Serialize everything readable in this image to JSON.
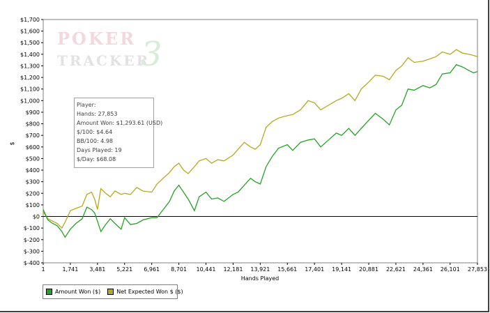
{
  "chart_data": {
    "type": "line",
    "xlabel": "Hands Played",
    "ylabel": "$",
    "xlim": [
      1,
      27853
    ],
    "ylim": [
      -400,
      1700
    ],
    "x_ticks": [
      1,
      1741,
      3481,
      5221,
      6961,
      8701,
      10441,
      12181,
      13921,
      15661,
      17401,
      19141,
      20881,
      22621,
      24361,
      26101,
      27853
    ],
    "y_ticks": [
      -400,
      -300,
      -200,
      -100,
      0,
      100,
      200,
      300,
      400,
      500,
      600,
      700,
      800,
      900,
      1000,
      1100,
      1200,
      1300,
      1400,
      1500,
      1600,
      1700
    ],
    "y_tick_labels": [
      "$-400",
      "$-300",
      "$-200",
      "$-100",
      "$0",
      "$100",
      "$200",
      "$300",
      "$400",
      "$500",
      "$600",
      "$700",
      "$800",
      "$900",
      "$1,000",
      "$1,100",
      "$1,200",
      "$1,300",
      "$1,400",
      "$1,500",
      "$1,600",
      "$1,700"
    ],
    "legend_position": "bottom-left",
    "series": [
      {
        "name": "Amount Won ($)",
        "color": "#22a322",
        "x": [
          1,
          300,
          600,
          900,
          1200,
          1400,
          1741,
          2100,
          2500,
          2800,
          3100,
          3300,
          3481,
          3700,
          4000,
          4300,
          4600,
          5000,
          5221,
          5600,
          6000,
          6400,
          6961,
          7300,
          7700,
          8100,
          8400,
          8701,
          9000,
          9300,
          9700,
          10000,
          10441,
          10800,
          11200,
          11600,
          12181,
          12500,
          12900,
          13300,
          13600,
          13921,
          14300,
          14700,
          15100,
          15661,
          16000,
          16500,
          17000,
          17401,
          17800,
          18300,
          18800,
          19141,
          19600,
          20000,
          20400,
          20881,
          21300,
          21800,
          22200,
          22621,
          23000,
          23400,
          23800,
          24361,
          24800,
          25200,
          25600,
          26101,
          26500,
          26900,
          27300,
          27600,
          27853
        ],
        "y": [
          60,
          -30,
          -60,
          -80,
          -130,
          -180,
          -110,
          -60,
          -20,
          80,
          60,
          30,
          -40,
          -130,
          -70,
          -20,
          -60,
          -110,
          -10,
          -70,
          -60,
          -30,
          -10,
          -10,
          60,
          130,
          220,
          270,
          210,
          150,
          50,
          170,
          210,
          150,
          160,
          130,
          190,
          210,
          270,
          330,
          300,
          280,
          430,
          520,
          590,
          620,
          570,
          640,
          660,
          670,
          600,
          660,
          720,
          700,
          760,
          700,
          760,
          830,
          890,
          840,
          790,
          920,
          960,
          1100,
          1090,
          1130,
          1110,
          1140,
          1230,
          1240,
          1310,
          1290,
          1260,
          1240,
          1250
        ]
      },
      {
        "name": "Net Expected Won $ ($)",
        "color": "#b5aa1e",
        "x": [
          1,
          300,
          600,
          900,
          1200,
          1400,
          1741,
          2100,
          2500,
          2800,
          3100,
          3300,
          3481,
          3700,
          4000,
          4300,
          4600,
          5000,
          5221,
          5600,
          6000,
          6400,
          6961,
          7300,
          7700,
          8100,
          8400,
          8701,
          9000,
          9300,
          9700,
          10000,
          10441,
          10800,
          11200,
          11600,
          12181,
          12500,
          12900,
          13300,
          13600,
          13921,
          14300,
          14700,
          15100,
          15661,
          16000,
          16500,
          17000,
          17401,
          17800,
          18300,
          18800,
          19141,
          19600,
          20000,
          20400,
          20881,
          21300,
          21800,
          22200,
          22621,
          23000,
          23400,
          23800,
          24361,
          24800,
          25200,
          25600,
          26101,
          26500,
          26900,
          27300,
          27600,
          27853
        ],
        "y": [
          40,
          -20,
          -40,
          -60,
          -100,
          -50,
          50,
          70,
          90,
          190,
          210,
          150,
          60,
          240,
          200,
          170,
          220,
          190,
          200,
          190,
          250,
          220,
          210,
          280,
          330,
          380,
          430,
          460,
          400,
          370,
          430,
          480,
          500,
          460,
          490,
          480,
          530,
          580,
          640,
          600,
          580,
          620,
          770,
          820,
          850,
          870,
          880,
          920,
          1000,
          980,
          920,
          960,
          1000,
          1020,
          1060,
          1000,
          1100,
          1160,
          1220,
          1210,
          1180,
          1260,
          1300,
          1370,
          1330,
          1340,
          1360,
          1380,
          1420,
          1400,
          1440,
          1410,
          1400,
          1390,
          1380
        ]
      }
    ]
  },
  "info_box": {
    "lines": [
      "Player:",
      "Hands: 27,853",
      "Amount Won: $1,293.61 (USD)",
      "$/100: $4.64",
      "BB/100: 4.98",
      "Days Played: 19",
      "$/Day: $68.08"
    ]
  },
  "watermark": {
    "word1": "POKER",
    "word2": "TRACKER",
    "numeral": "3"
  }
}
